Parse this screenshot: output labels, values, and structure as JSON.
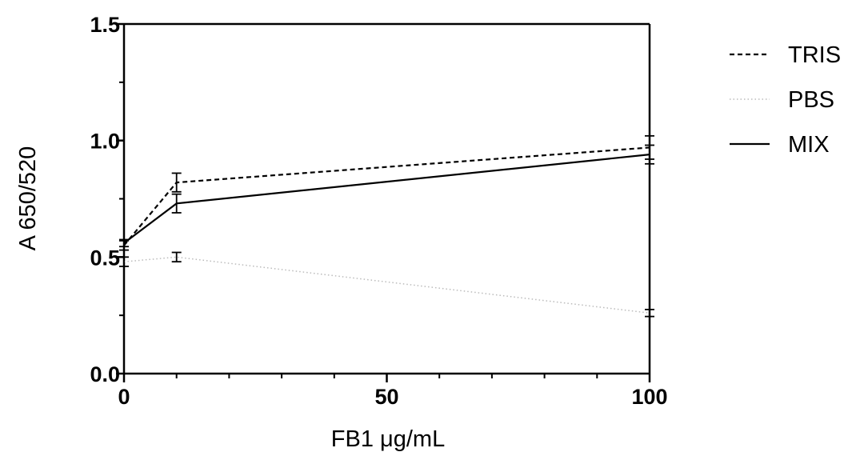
{
  "chart_data": {
    "type": "line",
    "xlabel": "FB1 μg/mL",
    "ylabel": "A 650/520",
    "xlim": [
      0,
      100
    ],
    "ylim": [
      0,
      1.5
    ],
    "x_ticks": [
      "0",
      "50",
      "100"
    ],
    "y_ticks": [
      "0.0",
      "0.5",
      "1.0",
      "1.5"
    ],
    "grid": false,
    "legend_position": "right",
    "x": [
      0,
      10,
      100
    ],
    "series": [
      {
        "name": "TRIS",
        "style": "dashed",
        "color": "#000000",
        "values": [
          0.55,
          0.82,
          0.97
        ],
        "errors": [
          0.02,
          0.04,
          0.05
        ]
      },
      {
        "name": "PBS",
        "style": "dotted",
        "color": "#bbbbbb",
        "values": [
          0.48,
          0.5,
          0.26
        ],
        "errors": [
          0.02,
          0.02,
          0.015
        ]
      },
      {
        "name": "MIX",
        "style": "solid",
        "color": "#000000",
        "values": [
          0.56,
          0.73,
          0.94
        ],
        "errors": [
          0.015,
          0.04,
          0.04
        ]
      }
    ]
  }
}
